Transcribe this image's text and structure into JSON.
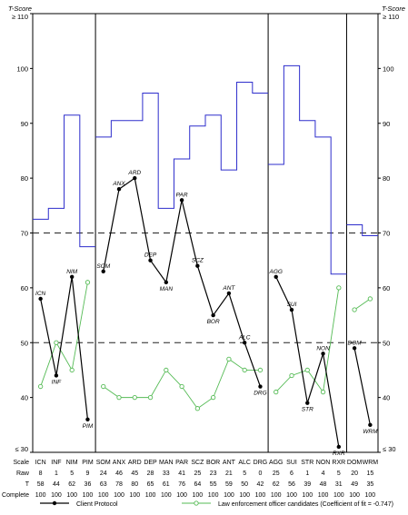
{
  "chart_data": {
    "type": "line",
    "left_axis_title": "T-Score",
    "right_axis_title": "T-Score",
    "y_tick_labels": [
      {
        "value": 110,
        "label": "≥ 110"
      },
      {
        "value": 100,
        "label": "100"
      },
      {
        "value": 90,
        "label": "90"
      },
      {
        "value": 80,
        "label": "80"
      },
      {
        "value": 70,
        "label": "70"
      },
      {
        "value": 60,
        "label": "60"
      },
      {
        "value": 50,
        "label": "50"
      },
      {
        "value": 40,
        "label": "40"
      },
      {
        "value": 30,
        "label": "≤ 30"
      }
    ],
    "ylim": [
      30,
      110
    ],
    "reference_lines": [
      70,
      50
    ],
    "groups": [
      [
        "ICN",
        "INF",
        "NIM",
        "PIM"
      ],
      [
        "SOM",
        "ANX",
        "ARD",
        "DEP",
        "MAN",
        "PAR",
        "SCZ",
        "BOR",
        "ANT",
        "ALC",
        "DRG"
      ],
      [
        "AGG",
        "SUI",
        "STR",
        "NON",
        "RXR"
      ],
      [
        "DOM",
        "WRM"
      ]
    ],
    "scales": [
      "ICN",
      "INF",
      "NIM",
      "PIM",
      "SOM",
      "ANX",
      "ARD",
      "DEP",
      "MAN",
      "PAR",
      "SCZ",
      "BOR",
      "ANT",
      "ALC",
      "DRG",
      "AGG",
      "SUI",
      "STR",
      "NON",
      "RXR",
      "DOM",
      "WRM"
    ],
    "series": [
      {
        "name": "Client Protocol",
        "color": "#000000",
        "values": [
          58,
          44,
          62,
          36,
          63,
          78,
          80,
          65,
          61,
          76,
          64,
          55,
          59,
          50,
          42,
          62,
          56,
          39,
          48,
          31,
          49,
          35
        ]
      },
      {
        "name": "Law enforcement officer candidates (Coefficient of fit = -0.747)",
        "color": "#55bb55",
        "values": [
          42,
          50,
          45,
          61,
          42,
          40,
          40,
          40,
          45,
          42,
          38,
          40,
          47,
          45,
          45,
          41,
          44,
          45,
          41,
          60,
          56,
          58
        ]
      }
    ],
    "upper_boundary": {
      "color": "#2d2dcc",
      "values": [
        72.5,
        74.5,
        91.5,
        67.5,
        87.5,
        90.5,
        90.5,
        95.5,
        74.5,
        83.5,
        89.5,
        91.5,
        81.5,
        97.5,
        95.5,
        82.5,
        100.5,
        90.5,
        87.5,
        62.5,
        71.5,
        69.5
      ]
    },
    "table": {
      "rows": [
        {
          "label": "Scale",
          "values": [
            "ICN",
            "INF",
            "NIM",
            "PIM",
            "SOM",
            "ANX",
            "ARD",
            "DEP",
            "MAN",
            "PAR",
            "SCZ",
            "BOR",
            "ANT",
            "ALC",
            "DRG",
            "AGG",
            "SUI",
            "STR",
            "NON",
            "RXR",
            "DOM",
            "WRM"
          ]
        },
        {
          "label": "Raw",
          "values": [
            "8",
            "1",
            "5",
            "9",
            "24",
            "46",
            "45",
            "28",
            "33",
            "41",
            "25",
            "23",
            "21",
            "5",
            "0",
            "25",
            "6",
            "1",
            "4",
            "5",
            "20",
            "15"
          ]
        },
        {
          "label": "T",
          "values": [
            "58",
            "44",
            "62",
            "36",
            "63",
            "78",
            "80",
            "65",
            "61",
            "76",
            "64",
            "55",
            "59",
            "50",
            "42",
            "62",
            "56",
            "39",
            "48",
            "31",
            "49",
            "35"
          ]
        },
        {
          "label": "% Complete",
          "values": [
            "100",
            "100",
            "100",
            "100",
            "100",
            "100",
            "100",
            "100",
            "100",
            "100",
            "100",
            "100",
            "100",
            "100",
            "100",
            "100",
            "100",
            "100",
            "100",
            "100",
            "100",
            "100"
          ]
        }
      ]
    }
  }
}
